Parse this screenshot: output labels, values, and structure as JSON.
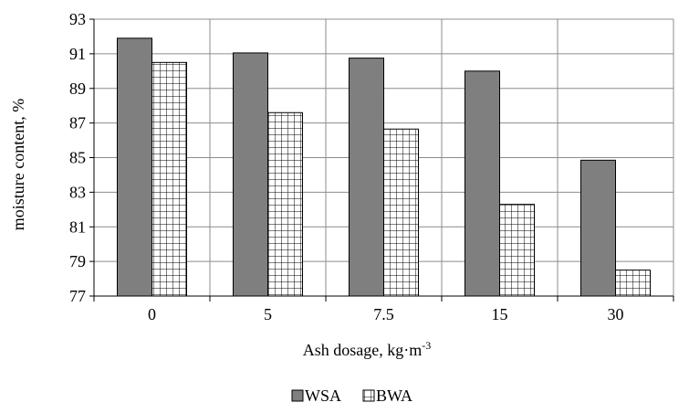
{
  "chart_data": {
    "type": "bar",
    "title": "",
    "xlabel": "Ash dosage, kg·m",
    "xlabel_sup": "-3",
    "ylabel": "moisture content, %",
    "categories": [
      "0",
      "5",
      "7.5",
      "15",
      "30"
    ],
    "series": [
      {
        "name": "WSA",
        "values": [
          91.9,
          91.05,
          90.75,
          90.0,
          84.85
        ],
        "color": "#7f7f7f",
        "pattern": "solid"
      },
      {
        "name": "BWA",
        "values": [
          90.5,
          87.6,
          86.65,
          82.3,
          78.5
        ],
        "color": "#ffffff",
        "pattern": "grid"
      }
    ],
    "ylim": [
      77,
      93
    ],
    "yticks": [
      "77",
      "79",
      "81",
      "83",
      "85",
      "87",
      "89",
      "91",
      "93"
    ],
    "grid": true,
    "legend": "bottom"
  }
}
